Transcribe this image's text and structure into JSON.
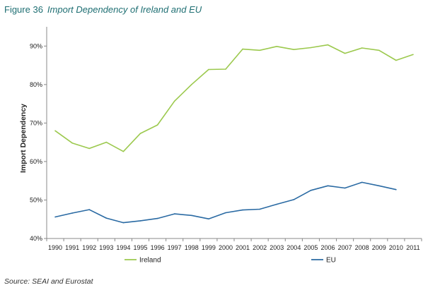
{
  "figure": {
    "number": "Figure 36",
    "title": "Import Dependency of Ireland and EU"
  },
  "source": "Source: SEAI and Eurostat",
  "chart_data": {
    "type": "line",
    "title": "Import Dependency of Ireland and EU",
    "xlabel": "",
    "ylabel": "Import Dependency",
    "x": [
      "1990",
      "1991",
      "1992",
      "1993",
      "1994",
      "1995",
      "1996",
      "1997",
      "1998",
      "1999",
      "2000",
      "2001",
      "2002",
      "2003",
      "2004",
      "2005",
      "2006",
      "2007",
      "2008",
      "2009",
      "2010",
      "2011"
    ],
    "ylim": [
      40,
      95
    ],
    "yticks": [
      40,
      50,
      60,
      70,
      80,
      90
    ],
    "ytick_labels": [
      "40%",
      "50%",
      "60%",
      "70%",
      "80%",
      "90%"
    ],
    "grid": false,
    "legend_position": "bottom",
    "series": [
      {
        "name": "Ireland",
        "color": "#9cc94e",
        "values": [
          68.0,
          64.8,
          63.4,
          65.0,
          62.6,
          67.3,
          69.5,
          75.7,
          80.0,
          83.9,
          84.0,
          89.2,
          88.9,
          89.9,
          89.1,
          89.6,
          90.3,
          88.1,
          89.5,
          88.9,
          86.3,
          87.8
        ]
      },
      {
        "name": "EU",
        "color": "#2a6aa3",
        "values": [
          45.6,
          46.6,
          47.5,
          45.3,
          44.1,
          44.6,
          45.2,
          46.4,
          46.0,
          45.1,
          46.7,
          47.4,
          47.6,
          48.9,
          50.1,
          52.5,
          53.7,
          53.1,
          54.6,
          53.7,
          52.7,
          null
        ]
      }
    ]
  }
}
